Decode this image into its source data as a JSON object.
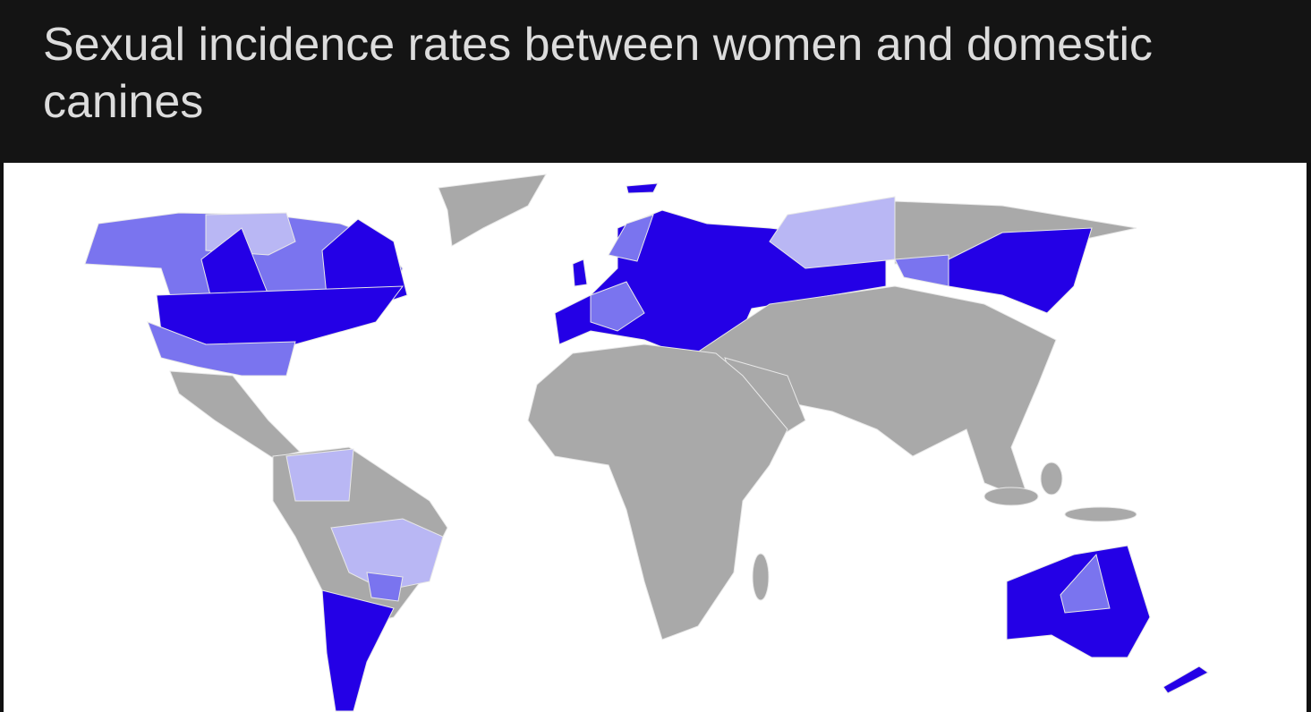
{
  "header": {
    "title": "Sexual incidence rates between women and domestic canines"
  }
}
